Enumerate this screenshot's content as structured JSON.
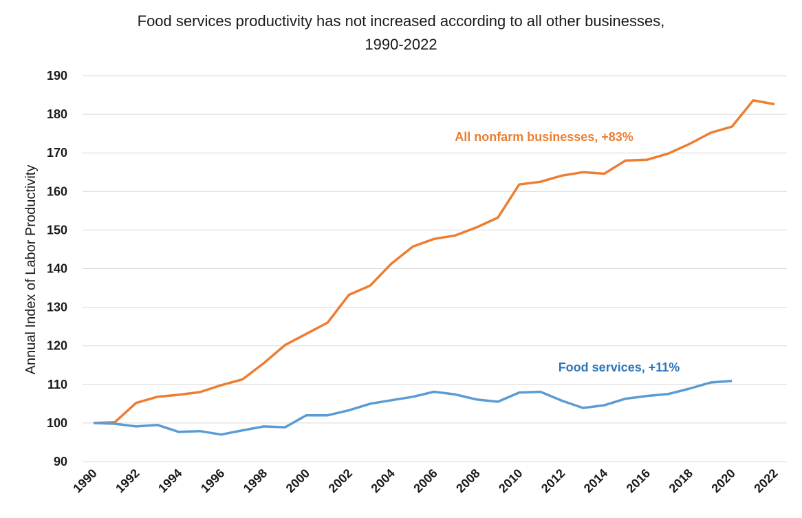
{
  "chart_data": {
    "type": "line",
    "title_line1": "Food services productivity has not increased according to all other businesses,",
    "title_line2": "1990-2022",
    "xlabel": "",
    "ylabel": "Annual Index of Labor Productivity",
    "ylim": [
      90,
      190
    ],
    "yticks": [
      90,
      100,
      110,
      120,
      130,
      140,
      150,
      160,
      170,
      180,
      190
    ],
    "xlim": [
      1990,
      2022
    ],
    "xticks": [
      1990,
      1992,
      1994,
      1996,
      1998,
      2000,
      2002,
      2004,
      2006,
      2008,
      2010,
      2012,
      2014,
      2016,
      2018,
      2020,
      2022
    ],
    "grid": true,
    "legend": "none",
    "series": [
      {
        "annotation": "All nonfarm businesses, +83%",
        "color": "#ED7D31",
        "x": [
          1990,
          1991,
          1992,
          1993,
          1994,
          1995,
          1996,
          1997,
          1998,
          1999,
          2000,
          2001,
          2002,
          2003,
          2004,
          2005,
          2006,
          2007,
          2008,
          2009,
          2010,
          2011,
          2012,
          2013,
          2014,
          2015,
          2016,
          2017,
          2018,
          2019,
          2020,
          2021,
          2022
        ],
        "values": [
          100.0,
          100.2,
          105.2,
          106.8,
          107.3,
          108.0,
          109.8,
          111.3,
          115.5,
          120.2,
          123.1,
          126.0,
          133.2,
          135.6,
          141.3,
          145.7,
          147.7,
          148.6,
          150.7,
          153.2,
          161.8,
          162.5,
          164.1,
          165.0,
          164.6,
          168.0,
          168.2,
          169.8,
          172.3,
          175.2,
          176.8,
          183.6,
          182.6
        ]
      },
      {
        "annotation": "Food services, +11%",
        "color": "#5B9BD5",
        "x": [
          1990,
          1991,
          1992,
          1993,
          1994,
          1995,
          1996,
          1997,
          1998,
          1999,
          2000,
          2001,
          2002,
          2003,
          2004,
          2005,
          2006,
          2007,
          2008,
          2009,
          2010,
          2011,
          2012,
          2013,
          2014,
          2015,
          2016,
          2017,
          2018,
          2019,
          2020
        ],
        "values": [
          100.0,
          99.8,
          99.1,
          99.5,
          97.7,
          97.9,
          97.0,
          98.1,
          99.1,
          98.9,
          102.0,
          102.0,
          103.3,
          105.0,
          105.9,
          106.8,
          108.1,
          107.4,
          106.1,
          105.5,
          107.9,
          108.1,
          105.8,
          103.9,
          104.6,
          106.3,
          107.0,
          107.5,
          108.9,
          110.5,
          110.9
        ]
      }
    ]
  }
}
